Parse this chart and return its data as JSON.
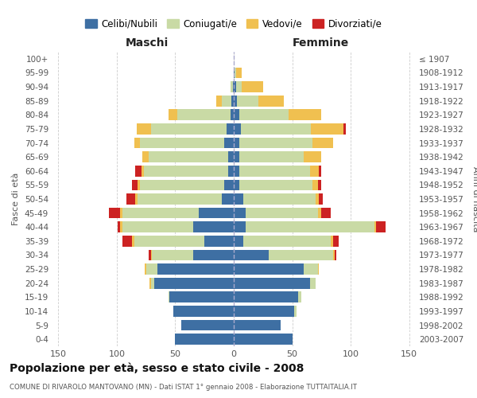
{
  "age_groups": [
    "0-4",
    "5-9",
    "10-14",
    "15-19",
    "20-24",
    "25-29",
    "30-34",
    "35-39",
    "40-44",
    "45-49",
    "50-54",
    "55-59",
    "60-64",
    "65-69",
    "70-74",
    "75-79",
    "80-84",
    "85-89",
    "90-94",
    "95-99",
    "100+"
  ],
  "birth_years": [
    "2003-2007",
    "1998-2002",
    "1993-1997",
    "1988-1992",
    "1983-1987",
    "1978-1982",
    "1973-1977",
    "1968-1972",
    "1963-1967",
    "1958-1962",
    "1953-1957",
    "1948-1952",
    "1943-1947",
    "1938-1942",
    "1933-1937",
    "1928-1932",
    "1923-1927",
    "1918-1922",
    "1913-1917",
    "1908-1912",
    "≤ 1907"
  ],
  "male": {
    "celibi": [
      50,
      45,
      52,
      55,
      68,
      65,
      35,
      25,
      35,
      30,
      10,
      8,
      5,
      5,
      8,
      6,
      3,
      2,
      1,
      0,
      0
    ],
    "coniugati": [
      0,
      0,
      0,
      1,
      3,
      10,
      35,
      60,
      60,
      65,
      72,
      72,
      72,
      68,
      72,
      65,
      45,
      8,
      2,
      0,
      0
    ],
    "vedovi": [
      0,
      0,
      0,
      0,
      1,
      1,
      1,
      2,
      2,
      2,
      2,
      2,
      2,
      5,
      5,
      12,
      8,
      5,
      0,
      0,
      0
    ],
    "divorziati": [
      0,
      0,
      0,
      0,
      0,
      0,
      2,
      8,
      2,
      10,
      8,
      5,
      5,
      0,
      0,
      0,
      0,
      0,
      0,
      0,
      0
    ]
  },
  "female": {
    "nubili": [
      50,
      40,
      52,
      55,
      65,
      60,
      30,
      8,
      10,
      10,
      8,
      5,
      5,
      5,
      5,
      6,
      5,
      3,
      2,
      1,
      0
    ],
    "coniugate": [
      0,
      0,
      2,
      3,
      5,
      12,
      55,
      75,
      110,
      62,
      62,
      62,
      60,
      55,
      62,
      60,
      42,
      18,
      5,
      1,
      0
    ],
    "vedove": [
      0,
      0,
      0,
      0,
      0,
      1,
      1,
      2,
      2,
      3,
      3,
      5,
      8,
      15,
      18,
      28,
      28,
      22,
      18,
      5,
      0
    ],
    "divorziate": [
      0,
      0,
      0,
      0,
      0,
      0,
      2,
      5,
      8,
      8,
      3,
      3,
      2,
      0,
      0,
      2,
      0,
      0,
      0,
      0,
      0
    ]
  },
  "colors": {
    "celibi_nubili": "#3e6fa3",
    "coniugati": "#c9daa5",
    "vedovi": "#f0c050",
    "divorziati": "#cc2222"
  },
  "title": "Popolazione per età, sesso e stato civile - 2008",
  "subtitle": "COMUNE DI RIVAROLO MANTOVANO (MN) - Dati ISTAT 1° gennaio 2008 - Elaborazione TUTTAITALIA.IT",
  "xlabel_left": "Maschi",
  "xlabel_right": "Femmine",
  "ylabel_left": "Fasce di età",
  "ylabel_right": "Anni di nascita",
  "xlim": 155,
  "legend_labels": [
    "Celibi/Nubili",
    "Coniugati/e",
    "Vedovi/e",
    "Divorziati/e"
  ],
  "background_color": "#ffffff",
  "grid_color": "#cccccc"
}
